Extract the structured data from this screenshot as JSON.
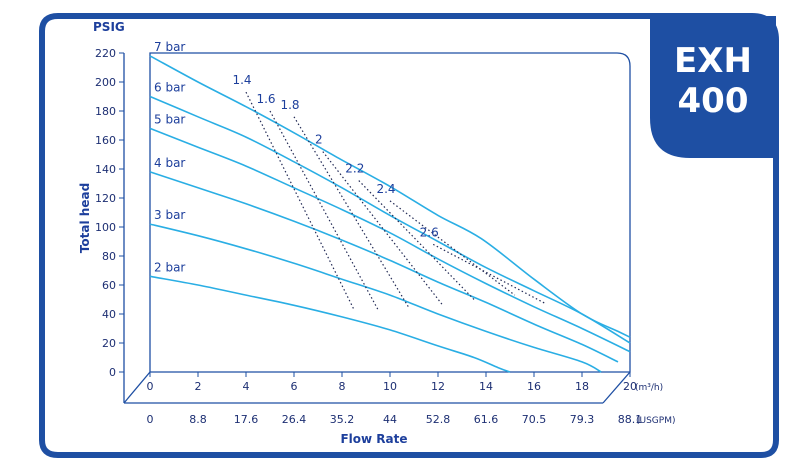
{
  "brand": {
    "line1": "EXH",
    "line2": "400"
  },
  "chart_data": {
    "type": "line",
    "x_units": "m³/h",
    "x_max": 20,
    "y_max": 220,
    "y_ticks": [
      "220",
      "200",
      "180",
      "160",
      "140",
      "120",
      "100",
      "80",
      "60",
      "40",
      "20",
      "0"
    ],
    "x_ticks_m3h": [
      "0",
      "2",
      "4",
      "6",
      "8",
      "10",
      "12",
      "14",
      "16",
      "18",
      "20"
    ],
    "x_ticks_usgpm": [
      "0",
      "8.8",
      "17.6",
      "26.4",
      "35.2",
      "44",
      "52.8",
      "61.6",
      "70.5",
      "79.3",
      "88.1"
    ],
    "y_axis_unit": "PSIG",
    "y_axis_title": "Total head",
    "x_axis_title": "Flow Rate",
    "x_unit_top": "(m³/h)",
    "x_unit_bottom": "(USGPM)",
    "series": [
      {
        "name": "7 bar",
        "points": [
          [
            0,
            218
          ],
          [
            2,
            200
          ],
          [
            4,
            183
          ],
          [
            6,
            165
          ],
          [
            7.8,
            148
          ],
          [
            10,
            128
          ],
          [
            12,
            108
          ],
          [
            13.8,
            92
          ],
          [
            16,
            64
          ],
          [
            18,
            40
          ],
          [
            19.5,
            28
          ],
          [
            20,
            24
          ]
        ]
      },
      {
        "name": "6 bar",
        "points": [
          [
            0,
            190
          ],
          [
            2,
            176
          ],
          [
            4,
            162
          ],
          [
            6,
            145
          ],
          [
            8,
            127
          ],
          [
            10,
            108
          ],
          [
            12,
            90
          ],
          [
            14,
            72
          ],
          [
            16,
            56
          ],
          [
            18,
            40
          ],
          [
            20,
            20
          ]
        ]
      },
      {
        "name": "5 bar",
        "points": [
          [
            0,
            168
          ],
          [
            2,
            155
          ],
          [
            4,
            142
          ],
          [
            6,
            127
          ],
          [
            8,
            112
          ],
          [
            10,
            96
          ],
          [
            12,
            78
          ],
          [
            14,
            61
          ],
          [
            16,
            45
          ],
          [
            18,
            30
          ],
          [
            20,
            14
          ]
        ]
      },
      {
        "name": "4 bar",
        "points": [
          [
            0,
            138
          ],
          [
            2,
            127
          ],
          [
            4,
            116
          ],
          [
            6,
            104
          ],
          [
            8,
            91
          ],
          [
            10,
            77
          ],
          [
            12,
            62
          ],
          [
            14,
            48
          ],
          [
            16,
            33
          ],
          [
            18,
            19
          ],
          [
            19.5,
            7
          ]
        ]
      },
      {
        "name": "3 bar",
        "points": [
          [
            0,
            102
          ],
          [
            2,
            94
          ],
          [
            4,
            85
          ],
          [
            6,
            75
          ],
          [
            8,
            64
          ],
          [
            10,
            53
          ],
          [
            12,
            40
          ],
          [
            14,
            28
          ],
          [
            16,
            17
          ],
          [
            18,
            7
          ],
          [
            18.8,
            0
          ]
        ]
      },
      {
        "name": "2 bar",
        "points": [
          [
            0,
            66
          ],
          [
            2,
            60
          ],
          [
            4,
            53
          ],
          [
            6,
            46
          ],
          [
            8,
            38
          ],
          [
            10,
            29
          ],
          [
            12,
            18
          ],
          [
            13.5,
            10
          ],
          [
            14.5,
            3
          ],
          [
            15,
            0
          ]
        ]
      }
    ],
    "air_consumption": [
      {
        "label": "1.4",
        "points": [
          [
            4,
            193
          ],
          [
            8.5,
            43
          ]
        ]
      },
      {
        "label": "1.6",
        "points": [
          [
            5,
            180
          ],
          [
            9.5,
            43
          ]
        ]
      },
      {
        "label": "1.8",
        "points": [
          [
            6,
            176
          ],
          [
            10.8,
            44
          ]
        ]
      },
      {
        "label": "2",
        "points": [
          [
            7.2,
            152
          ],
          [
            12.2,
            46
          ]
        ]
      },
      {
        "label": "2.2",
        "points": [
          [
            8.7,
            132
          ],
          [
            13.5,
            50
          ]
        ]
      },
      {
        "label": "2.4",
        "points": [
          [
            10,
            118
          ],
          [
            15.2,
            53
          ]
        ]
      },
      {
        "label": "2.6",
        "points": [
          [
            11.8,
            88
          ],
          [
            16.5,
            47
          ]
        ]
      }
    ],
    "line_color": "#2aaee4",
    "dotted_color": "#222a55",
    "grid": false
  },
  "colors": {
    "frame": "#1e4fa3",
    "text": "#1d3f9c"
  }
}
